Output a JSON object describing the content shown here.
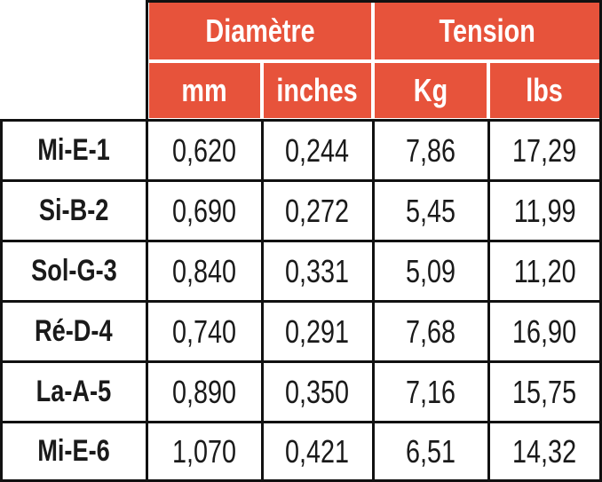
{
  "header": {
    "groups": [
      "Diamètre",
      "Tension"
    ],
    "units": [
      "mm",
      "inches",
      "Kg",
      "lbs"
    ]
  },
  "rows": [
    [
      "Mi-E-1",
      "0,620",
      "0,244",
      "7,86",
      "17,29"
    ],
    [
      "Si-B-2",
      "0,690",
      "0,272",
      "5,45",
      "11,99"
    ],
    [
      "Sol-G-3",
      "0,840",
      "0,331",
      "5,09",
      "11,20"
    ],
    [
      "Ré-D-4",
      "0,740",
      "0,291",
      "7,68",
      "16,90"
    ],
    [
      "La-A-5",
      "0,890",
      "0,350",
      "7,16",
      "15,75"
    ],
    [
      "Mi-E-6",
      "1,070",
      "0,421",
      "6,51",
      "14,32"
    ]
  ]
}
